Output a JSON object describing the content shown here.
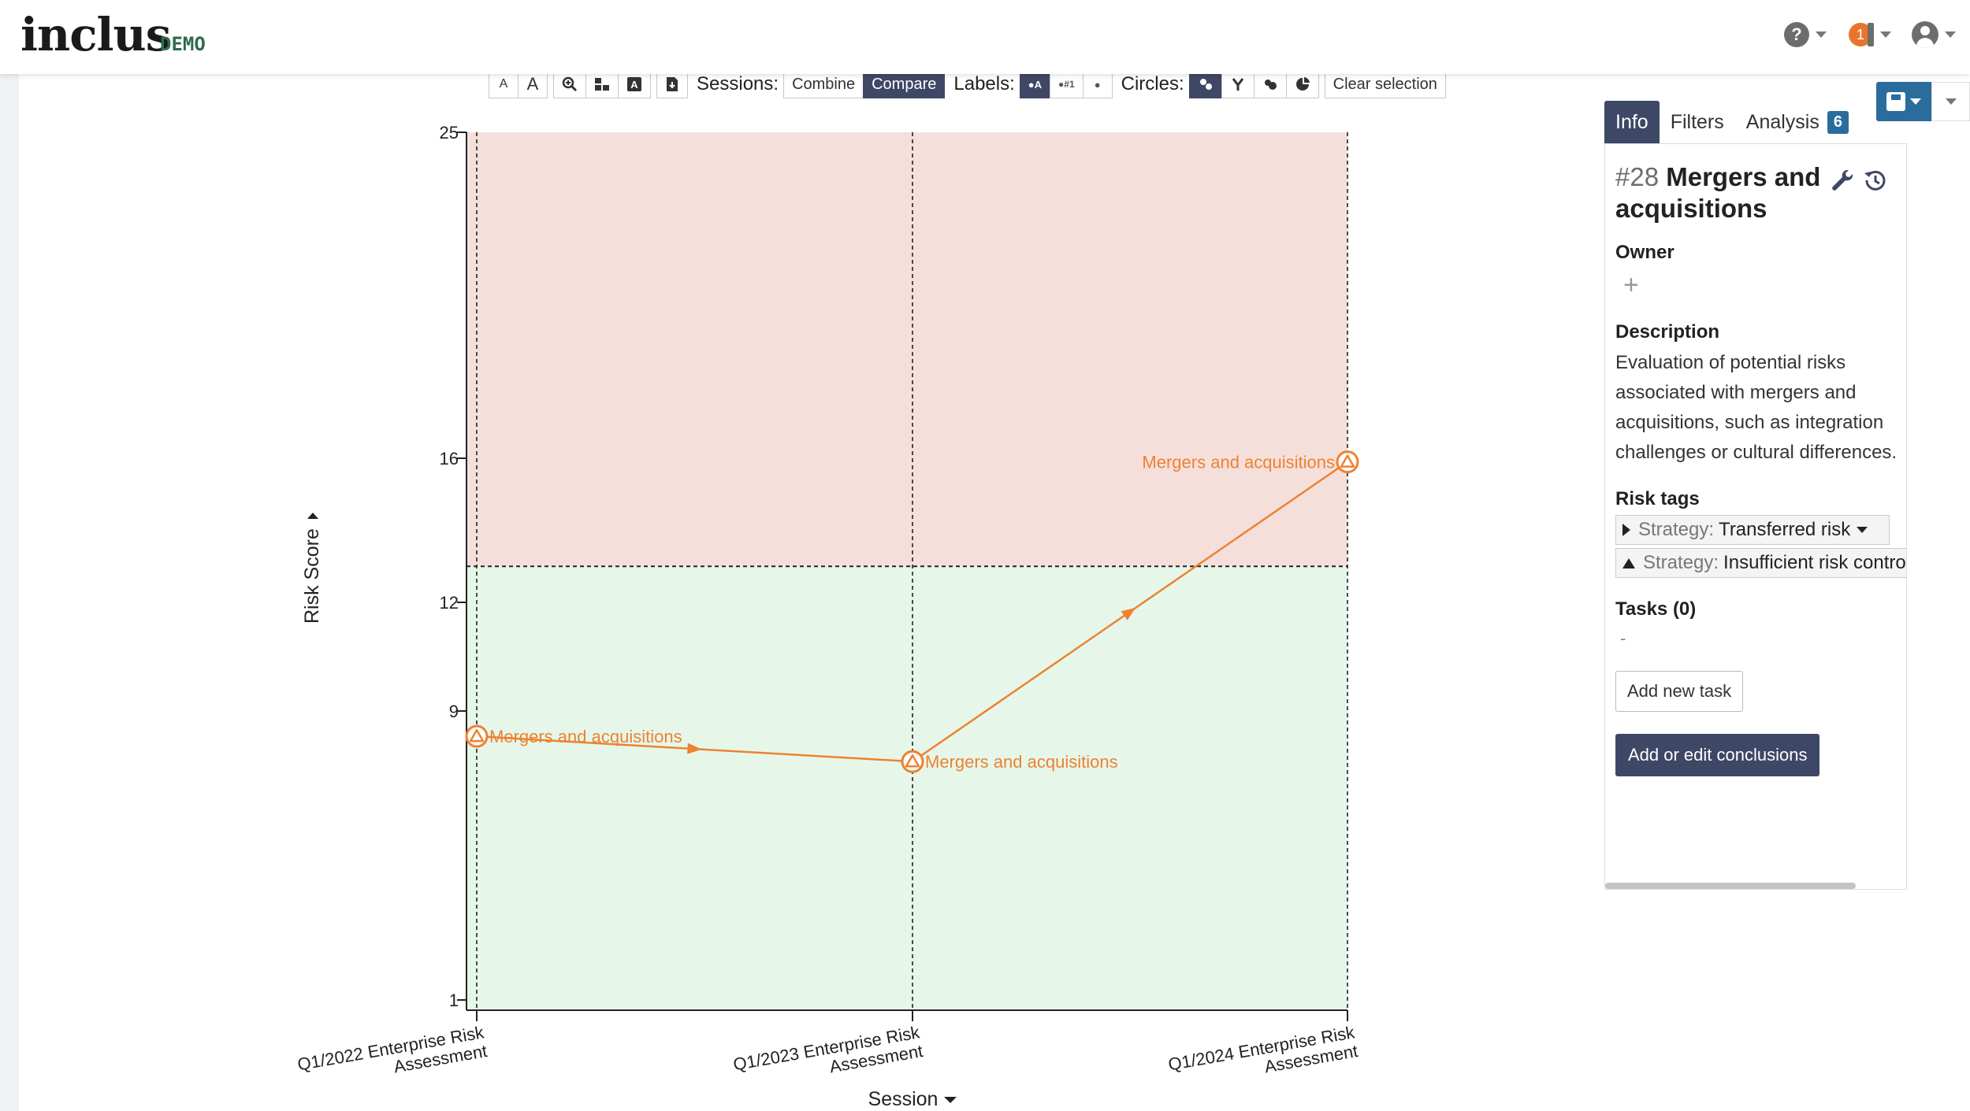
{
  "header": {
    "logo_text": "inclus",
    "logo_badge": "DEMO",
    "help_glyph": "?",
    "notifications_count": "1",
    "icons": [
      "help-icon",
      "notification-icon",
      "user-icon"
    ]
  },
  "toolbar": {
    "font_small": "A",
    "font_large": "A",
    "sessions_label": "Sessions:",
    "combine_label": "Combine",
    "compare_label": "Compare",
    "labels_label": "Labels:",
    "label_opt1": "●A",
    "label_opt2": "●#1",
    "label_opt3": "●",
    "circles_label": "Circles:",
    "clear_label": "Clear selection"
  },
  "chart_data": {
    "type": "line",
    "ylabel": "Risk Score",
    "xlabel": "Session",
    "y_ticks": [
      "25",
      "16",
      "12",
      "9",
      "1"
    ],
    "y_tick_values": [
      25,
      16,
      12,
      9,
      1
    ],
    "categories": [
      "Q1/2022 Enterprise Risk Assessment",
      "Q1/2023 Enterprise Risk Assessment",
      "Q1/2024 Enterprise Risk Assessment"
    ],
    "category_lines": [
      [
        "Q1/2022 Enterprise Risk",
        "Assessment"
      ],
      [
        "Q1/2023 Enterprise Risk",
        "Assessment"
      ],
      [
        "Q1/2024 Enterprise Risk",
        "Assessment"
      ]
    ],
    "series": [
      {
        "name": "Mergers and acquisitions",
        "values": [
          8.3,
          7.6,
          15.9
        ],
        "color": "#ed8231"
      }
    ],
    "threshold": 13,
    "zones": {
      "high_color": "#f5dfdb",
      "low_color": "#e6f7ea"
    }
  },
  "sidebar": {
    "tabs": [
      {
        "label": "Info"
      },
      {
        "label": "Filters"
      },
      {
        "label": "Analysis",
        "badge": "6"
      }
    ],
    "risk_number": "#28",
    "risk_name": "Mergers and acquisitions",
    "owner_heading": "Owner",
    "add_owner_glyph": "+",
    "description_heading": "Description",
    "description": "Evaluation of potential risks associated with mergers and acquisitions, such as integration challenges or cultural differences.",
    "risk_tags_heading": "Risk tags",
    "tags": [
      {
        "key": "Strategy:",
        "value": "Transferred risk"
      },
      {
        "key": "Strategy:",
        "value": "Insufficient risk controls"
      }
    ],
    "tasks_heading": "Tasks (0)",
    "tasks_empty": "-",
    "add_task_label": "Add new task",
    "conclusions_label": "Add or edit conclusions"
  }
}
